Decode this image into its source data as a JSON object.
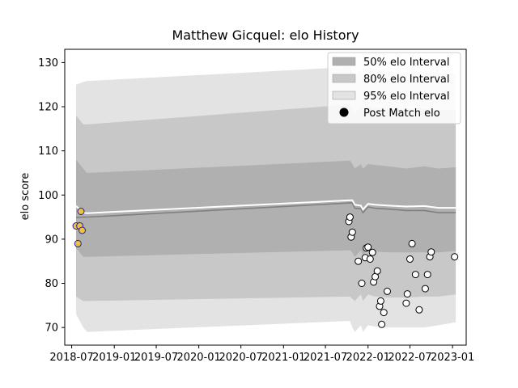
{
  "chart_data": {
    "type": "area",
    "title": "Matthew Gicquel: elo History",
    "xlabel": "",
    "ylabel": "elo score",
    "xlim": [
      "2018-06-01",
      "2023-03-01"
    ],
    "ylim": [
      66,
      133
    ],
    "x_ticks": [
      "2018-07",
      "2019-01",
      "2019-07",
      "2020-01",
      "2020-07",
      "2021-01",
      "2021-07",
      "2022-01",
      "2022-07",
      "2023-01"
    ],
    "y_ticks": [
      70,
      80,
      90,
      100,
      110,
      120,
      130
    ],
    "grid": false,
    "legend_placement": "top-right",
    "legend": [
      {
        "label": "50% elo Interval",
        "color": "#b0b0b0"
      },
      {
        "label": "80% elo Interval",
        "color": "#c8c8c8"
      },
      {
        "label": "95% elo Interval",
        "color": "#e3e3e3"
      },
      {
        "label": "Post Match elo",
        "color": "#000000"
      }
    ],
    "mean_line": {
      "color": "#ffffff",
      "x": [
        "2018-07-20",
        "2018-08-20",
        "2018-09-05",
        "2021-10-15",
        "2021-10-25",
        "2021-11-05",
        "2021-12-01",
        "2021-12-10",
        "2022-01-01",
        "2022-02-01",
        "2022-04-01",
        "2022-06-15",
        "2022-09-01",
        "2022-11-01",
        "2023-01-15"
      ],
      "y": [
        97.5,
        96.0,
        95.9,
        98.8,
        98.8,
        97.8,
        97.6,
        96.7,
        98.0,
        97.8,
        97.6,
        97.4,
        97.5,
        97.1,
        97.1
      ]
    },
    "center_line": {
      "color": "#808080",
      "x": [
        "2018-07-20",
        "2018-08-20",
        "2018-09-05",
        "2021-10-15",
        "2021-10-25",
        "2021-11-05",
        "2021-12-01",
        "2021-12-10",
        "2022-01-01",
        "2022-02-01",
        "2022-04-01",
        "2022-06-15",
        "2022-09-01",
        "2022-11-01",
        "2023-01-15"
      ],
      "y": [
        94.9,
        95.0,
        95.0,
        98.2,
        98.2,
        97.0,
        96.9,
        96.0,
        97.3,
        97.0,
        96.8,
        96.5,
        96.5,
        96.0,
        96.0
      ]
    },
    "intervals": [
      {
        "name": "95% elo Interval",
        "color": "#e3e3e3",
        "x": [
          "2018-07-20",
          "2018-08-20",
          "2018-09-05",
          "2021-10-15",
          "2021-10-25",
          "2021-11-05",
          "2021-12-01",
          "2021-12-10",
          "2022-01-01",
          "2022-02-01",
          "2022-04-01",
          "2022-06-15",
          "2022-09-01",
          "2022-11-01",
          "2023-01-15"
        ],
        "upper": [
          125.0,
          125.6,
          125.8,
          129.0,
          128.0,
          127.0,
          128.5,
          127.0,
          128.6,
          128.3,
          128.0,
          127.7,
          128.0,
          127.5,
          127.3
        ],
        "lower": [
          73.0,
          70.0,
          69.0,
          71.5,
          70.0,
          69.0,
          70.5,
          69.0,
          70.5,
          70.2,
          70.0,
          70.0,
          70.0,
          70.5,
          71.2
        ]
      },
      {
        "name": "80% elo Interval",
        "color": "#c8c8c8",
        "x": [
          "2018-07-20",
          "2018-08-20",
          "2018-09-05",
          "2021-10-15",
          "2021-10-25",
          "2021-11-05",
          "2021-12-01",
          "2021-12-10",
          "2022-01-01",
          "2022-02-01",
          "2022-04-01",
          "2022-06-15",
          "2022-09-01",
          "2022-11-01",
          "2023-01-15"
        ],
        "upper": [
          118.0,
          116.0,
          116.0,
          120.5,
          119.5,
          118.5,
          120.0,
          119.0,
          120.0,
          119.8,
          119.5,
          119.4,
          119.5,
          119.2,
          119.2
        ],
        "lower": [
          77.0,
          76.0,
          76.0,
          77.0,
          76.5,
          76.0,
          77.5,
          76.0,
          77.5,
          77.0,
          76.8,
          76.8,
          77.0,
          77.0,
          77.5
        ]
      },
      {
        "name": "50% elo Interval",
        "color": "#b0b0b0",
        "x": [
          "2018-07-20",
          "2018-08-20",
          "2018-09-05",
          "2021-10-15",
          "2021-10-25",
          "2021-11-05",
          "2021-12-01",
          "2021-12-10",
          "2022-01-01",
          "2022-02-01",
          "2022-04-01",
          "2022-06-15",
          "2022-09-01",
          "2022-11-01",
          "2023-01-15"
        ],
        "upper": [
          108.0,
          106.0,
          105.0,
          107.8,
          107.0,
          106.0,
          107.0,
          106.0,
          107.0,
          106.8,
          106.5,
          106.0,
          106.5,
          106.0,
          106.3
        ],
        "lower": [
          88.0,
          86.0,
          86.0,
          87.5,
          87.0,
          86.0,
          87.5,
          86.5,
          87.5,
          87.2,
          87.0,
          87.0,
          87.0,
          87.0,
          87.3
        ]
      }
    ],
    "series": [
      {
        "name": "Post Match elo",
        "color": "#ffffff",
        "edge_color": "#000000",
        "x": [
          "2021-10-10",
          "2021-10-15",
          "2021-10-20",
          "2021-10-25",
          "2021-11-20",
          "2021-12-05",
          "2021-12-20",
          "2021-12-25",
          "2022-01-01",
          "2022-01-10",
          "2022-01-20",
          "2022-01-25",
          "2022-02-01",
          "2022-02-10",
          "2022-02-20",
          "2022-02-25",
          "2022-03-01",
          "2022-03-10",
          "2022-03-25",
          "2022-06-15",
          "2022-06-20",
          "2022-07-01",
          "2022-07-10",
          "2022-07-25",
          "2022-08-10",
          "2022-09-05",
          "2022-09-15",
          "2022-09-25",
          "2022-10-01",
          "2023-01-10"
        ],
        "y": [
          94.0,
          95.0,
          90.5,
          91.6,
          85.0,
          80.0,
          85.8,
          88.0,
          88.2,
          85.5,
          87.0,
          80.3,
          81.5,
          82.8,
          74.8,
          76.0,
          70.7,
          73.4,
          78.2,
          75.5,
          77.6,
          85.5,
          89.0,
          82.0,
          74.0,
          78.8,
          82.0,
          86.0,
          87.1,
          86.0
        ]
      },
      {
        "name": "",
        "color": "#f0c040",
        "edge_color": "#2020a0",
        "x": [
          "2018-07-20",
          "2018-07-28",
          "2018-08-05",
          "2018-08-10",
          "2018-08-15"
        ],
        "y": [
          93.0,
          89.0,
          93.0,
          96.3,
          92.0
        ]
      }
    ]
  }
}
